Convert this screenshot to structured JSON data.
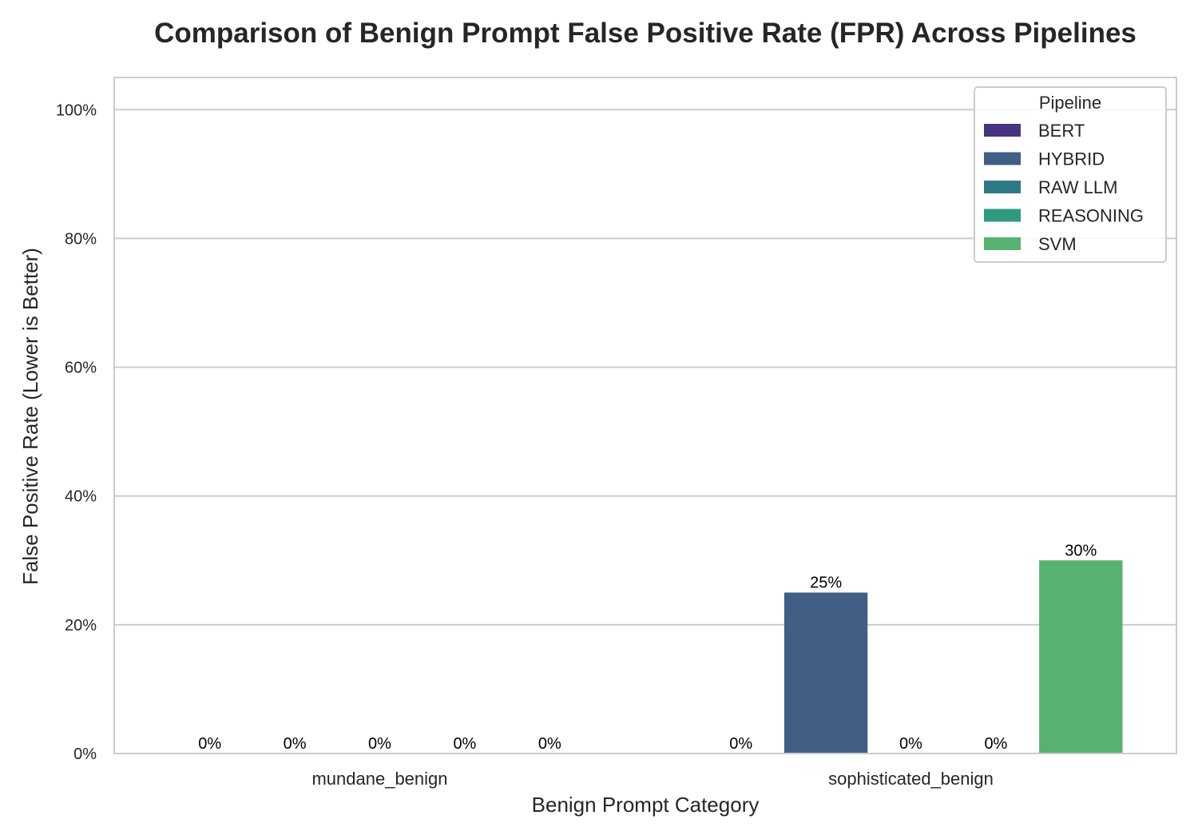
{
  "chart_data": {
    "type": "bar",
    "title": "Comparison of Benign Prompt False Positive Rate (FPR) Across Pipelines",
    "xlabel": "Benign Prompt Category",
    "ylabel": "False Positive Rate (Lower is Better)",
    "categories": [
      "mundane_benign",
      "sophisticated_benign"
    ],
    "ylim": [
      0,
      105
    ],
    "yticks": [
      0,
      20,
      40,
      60,
      80,
      100
    ],
    "ytick_labels": [
      "0%",
      "20%",
      "40%",
      "60%",
      "80%",
      "100%"
    ],
    "grid": true,
    "legend": {
      "title": "Pipeline",
      "placement": "top-right"
    },
    "series": [
      {
        "name": "BERT",
        "color": "#463480",
        "values": [
          0,
          0
        ],
        "labels": [
          "0%",
          "0%"
        ]
      },
      {
        "name": "HYBRID",
        "color": "#415e85",
        "values": [
          0,
          25
        ],
        "labels": [
          "0%",
          "25%"
        ]
      },
      {
        "name": "RAW LLM",
        "color": "#2e7a84",
        "values": [
          0,
          0
        ],
        "labels": [
          "0%",
          "0%"
        ]
      },
      {
        "name": "REASONING",
        "color": "#2f9a80",
        "values": [
          0,
          0
        ],
        "labels": [
          "0%",
          "0%"
        ]
      },
      {
        "name": "SVM",
        "color": "#57b272",
        "values": [
          0,
          30
        ],
        "labels": [
          "0%",
          "30%"
        ]
      }
    ]
  }
}
